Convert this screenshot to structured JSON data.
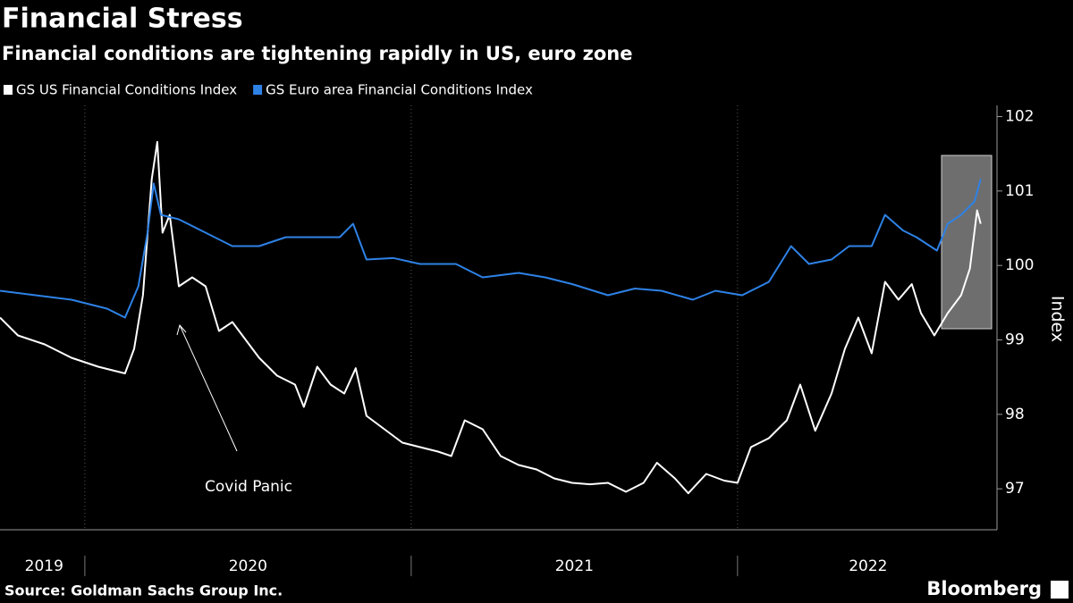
{
  "chart_data": {
    "type": "line",
    "title": "Financial Stress",
    "subtitle": "Financial conditions are tightening rapidly in US, euro zone",
    "y_axis_label": "Index",
    "annotation": "Covid Panic",
    "source": "Source: Goldman Sachs Group Inc.",
    "brand": "Bloomberg",
    "xlim": [
      2019.74,
      2022.795
    ],
    "xticks": [
      {
        "value": 2019.875,
        "label": "2019"
      },
      {
        "value": 2020.5,
        "label": "2020"
      },
      {
        "value": 2021.5,
        "label": "2021"
      },
      {
        "value": 2022.4,
        "label": "2022"
      }
    ],
    "year_boundaries": [
      2020,
      2021,
      2022
    ],
    "ylim": [
      96.45,
      102.15
    ],
    "yticks": [
      97,
      98,
      99,
      100,
      101,
      102
    ],
    "series": [
      {
        "name": "GS US Financial Conditions Index",
        "color": "#ffffff",
        "x": [
          2019.74,
          2019.795,
          2019.877,
          2019.959,
          2020.041,
          2020.123,
          2020.151,
          2020.178,
          2020.205,
          2020.222,
          2020.238,
          2020.26,
          2020.288,
          2020.329,
          2020.37,
          2020.411,
          2020.452,
          2020.493,
          2020.534,
          2020.589,
          2020.644,
          2020.671,
          2020.712,
          2020.753,
          2020.795,
          2020.83,
          2020.863,
          2020.918,
          2020.973,
          2021.027,
          2021.082,
          2021.123,
          2021.164,
          2021.219,
          2021.274,
          2021.329,
          2021.384,
          2021.438,
          2021.493,
          2021.548,
          2021.603,
          2021.658,
          2021.712,
          2021.753,
          2021.808,
          2021.849,
          2021.904,
          2021.959,
          2022.0,
          2022.041,
          2022.096,
          2022.151,
          2022.192,
          2022.238,
          2022.288,
          2022.329,
          2022.37,
          2022.411,
          2022.452,
          2022.493,
          2022.534,
          2022.562,
          2022.603,
          2022.644,
          2022.685,
          2022.712,
          2022.734,
          2022.745
        ],
        "values": [
          99.3,
          99.06,
          98.94,
          98.76,
          98.64,
          98.55,
          98.88,
          99.6,
          101.16,
          101.66,
          100.44,
          100.68,
          99.72,
          99.84,
          99.72,
          99.12,
          99.24,
          99.0,
          98.76,
          98.52,
          98.4,
          98.1,
          98.64,
          98.4,
          98.28,
          98.62,
          97.98,
          97.8,
          97.62,
          97.56,
          97.5,
          97.44,
          97.92,
          97.8,
          97.44,
          97.32,
          97.26,
          97.14,
          97.08,
          97.06,
          97.08,
          96.96,
          97.08,
          97.35,
          97.14,
          96.94,
          97.2,
          97.11,
          97.08,
          97.56,
          97.68,
          97.92,
          98.4,
          97.78,
          98.28,
          98.88,
          99.3,
          98.82,
          99.78,
          99.54,
          99.75,
          99.36,
          99.06,
          99.36,
          99.6,
          99.96,
          100.74,
          100.56
        ]
      },
      {
        "name": "GS Euro area Financial Conditions Index",
        "color": "#2e82e6",
        "x": [
          2019.74,
          2019.849,
          2019.959,
          2020.068,
          2020.123,
          2020.164,
          2020.192,
          2020.211,
          2020.233,
          2020.288,
          2020.37,
          2020.452,
          2020.534,
          2020.616,
          2020.699,
          2020.781,
          2020.822,
          2020.863,
          2020.945,
          2021.027,
          2021.137,
          2021.219,
          2021.329,
          2021.411,
          2021.493,
          2021.603,
          2021.685,
          2021.767,
          2021.863,
          2021.932,
          2022.014,
          2022.096,
          2022.164,
          2022.219,
          2022.288,
          2022.342,
          2022.411,
          2022.452,
          2022.507,
          2022.548,
          2022.611,
          2022.644,
          2022.685,
          2022.726,
          2022.745
        ],
        "values": [
          99.66,
          99.6,
          99.54,
          99.42,
          99.3,
          99.72,
          100.44,
          101.1,
          100.68,
          100.62,
          100.44,
          100.26,
          100.26,
          100.38,
          100.38,
          100.38,
          100.56,
          100.08,
          100.1,
          100.02,
          100.02,
          99.84,
          99.9,
          99.84,
          99.75,
          99.6,
          99.69,
          99.66,
          99.54,
          99.66,
          99.6,
          99.78,
          100.26,
          100.02,
          100.08,
          100.26,
          100.26,
          100.68,
          100.47,
          100.38,
          100.2,
          100.56,
          100.68,
          100.86,
          101.16
        ]
      }
    ]
  }
}
